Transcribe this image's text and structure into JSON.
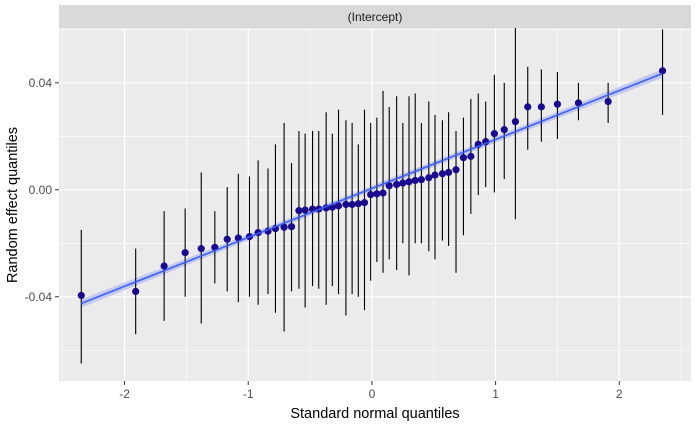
{
  "chart_data": {
    "type": "scatter",
    "panel_title": "(Intercept)",
    "xlabel": "Standard normal quantiles",
    "ylabel": "Random effect quantiles",
    "xlim": [
      -2.53,
      2.58
    ],
    "ylim": [
      -0.0715,
      0.0605
    ],
    "x_ticks": [
      -2,
      -1,
      0,
      1,
      2
    ],
    "x_tick_labels": [
      "-2",
      "-1",
      "0",
      "1",
      "2"
    ],
    "y_ticks": [
      -0.04,
      0.0,
      0.04
    ],
    "y_tick_labels": [
      "-0.04",
      "0.00",
      "0.04"
    ],
    "grid": true,
    "point_color": "#1a0a8c",
    "errorbar_color": "#000000",
    "fit_line": {
      "color": "#3b5cf0",
      "band_color": "#b7bff0",
      "x": [
        -2.35,
        2.35
      ],
      "y": [
        -0.0425,
        0.0435
      ]
    },
    "points": [
      {
        "x": -2.35,
        "y": -0.0395,
        "lo": -0.065,
        "hi": -0.015
      },
      {
        "x": -1.91,
        "y": -0.038,
        "lo": -0.054,
        "hi": -0.022
      },
      {
        "x": -1.68,
        "y": -0.0285,
        "lo": -0.049,
        "hi": -0.008
      },
      {
        "x": -1.51,
        "y": -0.0235,
        "lo": -0.04,
        "hi": -0.007
      },
      {
        "x": -1.38,
        "y": -0.022,
        "lo": -0.05,
        "hi": 0.0065
      },
      {
        "x": -1.27,
        "y": -0.0215,
        "lo": -0.035,
        "hi": -0.008
      },
      {
        "x": -1.17,
        "y": -0.0185,
        "lo": -0.038,
        "hi": 0.001
      },
      {
        "x": -1.08,
        "y": -0.018,
        "lo": -0.042,
        "hi": 0.006
      },
      {
        "x": -0.99,
        "y": -0.0175,
        "lo": -0.04,
        "hi": 0.005
      },
      {
        "x": -0.92,
        "y": -0.016,
        "lo": -0.043,
        "hi": 0.011
      },
      {
        "x": -0.84,
        "y": -0.0155,
        "lo": -0.039,
        "hi": 0.008
      },
      {
        "x": -0.78,
        "y": -0.0145,
        "lo": -0.046,
        "hi": 0.017
      },
      {
        "x": -0.71,
        "y": -0.014,
        "lo": -0.053,
        "hi": 0.025
      },
      {
        "x": -0.65,
        "y": -0.0138,
        "lo": -0.038,
        "hi": 0.01
      },
      {
        "x": -0.59,
        "y": -0.0078,
        "lo": -0.037,
        "hi": 0.022
      },
      {
        "x": -0.54,
        "y": -0.0076,
        "lo": -0.044,
        "hi": 0.021
      },
      {
        "x": -0.48,
        "y": -0.0072,
        "lo": -0.036,
        "hi": 0.022
      },
      {
        "x": -0.43,
        "y": -0.0072,
        "lo": -0.037,
        "hi": 0.022
      },
      {
        "x": -0.37,
        "y": -0.0068,
        "lo": -0.043,
        "hi": 0.029
      },
      {
        "x": -0.32,
        "y": -0.0065,
        "lo": -0.036,
        "hi": 0.021
      },
      {
        "x": -0.27,
        "y": -0.006,
        "lo": -0.039,
        "hi": 0.03
      },
      {
        "x": -0.21,
        "y": -0.0055,
        "lo": -0.047,
        "hi": 0.026
      },
      {
        "x": -0.16,
        "y": -0.0055,
        "lo": -0.039,
        "hi": 0.025
      },
      {
        "x": -0.11,
        "y": -0.0052,
        "lo": -0.04,
        "hi": 0.017
      },
      {
        "x": -0.06,
        "y": -0.0048,
        "lo": -0.045,
        "hi": 0.03
      },
      {
        "x": -0.01,
        "y": -0.0018,
        "lo": -0.034,
        "hi": 0.025
      },
      {
        "x": 0.04,
        "y": -0.0015,
        "lo": -0.027,
        "hi": 0.027
      },
      {
        "x": 0.09,
        "y": -0.0012,
        "lo": -0.031,
        "hi": 0.037
      },
      {
        "x": 0.14,
        "y": 0.0015,
        "lo": -0.026,
        "hi": 0.031
      },
      {
        "x": 0.2,
        "y": 0.002,
        "lo": -0.03,
        "hi": 0.035
      },
      {
        "x": 0.25,
        "y": 0.0025,
        "lo": -0.02,
        "hi": 0.025
      },
      {
        "x": 0.3,
        "y": 0.003,
        "lo": -0.032,
        "hi": 0.035
      },
      {
        "x": 0.35,
        "y": 0.0035,
        "lo": -0.02,
        "hi": 0.036
      },
      {
        "x": 0.4,
        "y": 0.0038,
        "lo": -0.02,
        "hi": 0.025
      },
      {
        "x": 0.46,
        "y": 0.0045,
        "lo": -0.023,
        "hi": 0.033
      },
      {
        "x": 0.51,
        "y": 0.0055,
        "lo": -0.026,
        "hi": 0.028
      },
      {
        "x": 0.57,
        "y": 0.006,
        "lo": -0.019,
        "hi": 0.026
      },
      {
        "x": 0.62,
        "y": 0.0065,
        "lo": -0.021,
        "hi": 0.029
      },
      {
        "x": 0.68,
        "y": 0.0075,
        "lo": -0.031,
        "hi": 0.022
      },
      {
        "x": 0.74,
        "y": 0.012,
        "lo": -0.017,
        "hi": 0.027
      },
      {
        "x": 0.8,
        "y": 0.0125,
        "lo": -0.009,
        "hi": 0.034
      },
      {
        "x": 0.86,
        "y": 0.017,
        "lo": -0.002,
        "hi": 0.036
      },
      {
        "x": 0.92,
        "y": 0.018,
        "lo": 0.001,
        "hi": 0.033
      },
      {
        "x": 0.99,
        "y": 0.021,
        "lo": -0.001,
        "hi": 0.043
      },
      {
        "x": 1.07,
        "y": 0.0225,
        "lo": 0.004,
        "hi": 0.04
      },
      {
        "x": 1.16,
        "y": 0.0255,
        "lo": -0.011,
        "hi": 0.061
      },
      {
        "x": 1.26,
        "y": 0.031,
        "lo": 0.015,
        "hi": 0.046
      },
      {
        "x": 1.37,
        "y": 0.031,
        "lo": 0.018,
        "hi": 0.045
      },
      {
        "x": 1.5,
        "y": 0.032,
        "lo": 0.019,
        "hi": 0.044
      },
      {
        "x": 1.67,
        "y": 0.0325,
        "lo": 0.026,
        "hi": 0.04
      },
      {
        "x": 1.91,
        "y": 0.033,
        "lo": 0.025,
        "hi": 0.04
      },
      {
        "x": 2.35,
        "y": 0.0445,
        "lo": 0.028,
        "hi": 0.06
      }
    ]
  }
}
